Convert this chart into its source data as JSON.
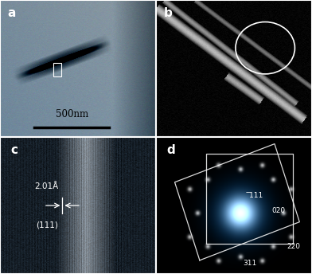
{
  "fig_width": 3.92,
  "fig_height": 3.44,
  "dpi": 100,
  "panel_labels": [
    "a",
    "b",
    "c",
    "d"
  ],
  "panel_label_color": "white",
  "panel_label_fontsize": 11,
  "scale_bar_text": "500nm",
  "hrtem_label1": "(111)",
  "hrtem_label2": "2.01Å",
  "saed_labels": [
    "311",
    "220",
    "020",
    "̅111"
  ],
  "separator_color": "white",
  "separator_lw": 1.5
}
